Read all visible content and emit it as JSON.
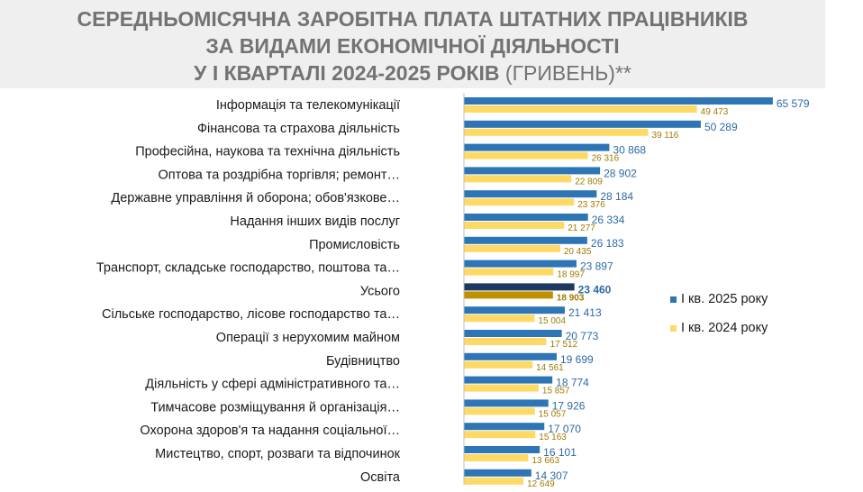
{
  "title": {
    "line1": "СЕРЕДНЬОМІСЯЧНА ЗАРОБІТНА ПЛАТА ШТАТНИХ ПРАЦІВНИКІВ",
    "line2": "ЗА ВИДАМИ ЕКОНОМІЧНОЇ ДІЯЛЬНОСТІ",
    "line3_bold": "У І КВАРТАЛІ 2024-2025 РОКІВ",
    "line3_light": " (ГРИВЕНЬ)**"
  },
  "colors": {
    "series2025": "#2e75b6",
    "series2024": "#ffd966",
    "total2025": "#1f3864",
    "total2024": "#bf9000",
    "axis": "#bfbfbf"
  },
  "chart_data": {
    "type": "bar",
    "orientation": "horizontal",
    "categories": [
      "Інформація та телекомунікації",
      "Фінансова та страхова діяльність",
      "Професійна, наукова та технічна діяльність",
      "Оптова та роздрібна торгівля; ремонт…",
      "Державне управління й оборона; обов'язкове…",
      "Надання інших видів послуг",
      "Промисловість",
      "Транспорт, складське господарство, поштова та…",
      "Усього",
      "Сільське господарство, лісове господарство та…",
      "Операції з нерухомим майном",
      "Будівництво",
      "Діяльність у сфері адміністративного та…",
      "Тимчасове розміщування й організація…",
      "Охорона здоров'я та надання соціальної…",
      "Мистецтво, спорт, розваги та відпочинок",
      "Освіта"
    ],
    "highlight_category": "Усього",
    "series": [
      {
        "name": "І кв. 2025 року",
        "values": [
          65579,
          50289,
          30868,
          28902,
          28184,
          26334,
          26183,
          23897,
          23460,
          21413,
          20773,
          19699,
          18774,
          17926,
          17070,
          16101,
          14307
        ],
        "labels": [
          "65 579",
          "50 289",
          "30 868",
          "28 902",
          "28 184",
          "26 334",
          "26 183",
          "23 897",
          "23 460",
          "21 413",
          "20 773",
          "19 699",
          "18 774",
          "17 926",
          "17 070",
          "16 101",
          "14 307"
        ]
      },
      {
        "name": "І кв. 2024 року",
        "values": [
          49473,
          39116,
          26316,
          22809,
          23376,
          21277,
          20435,
          18997,
          18903,
          15004,
          17512,
          14561,
          15857,
          15057,
          15163,
          13663,
          12649
        ],
        "labels": [
          "49 473",
          "39 116",
          "26 316",
          "22 809",
          "23 376",
          "21 277",
          "20 435",
          "18 997",
          "18 903",
          "15 004",
          "17 512",
          "14 561",
          "15 857",
          "15 057",
          "15 163",
          "13 663",
          "12 649"
        ]
      }
    ],
    "xlim": [
      0,
      70000
    ],
    "grid": false,
    "legend_position": "right"
  }
}
